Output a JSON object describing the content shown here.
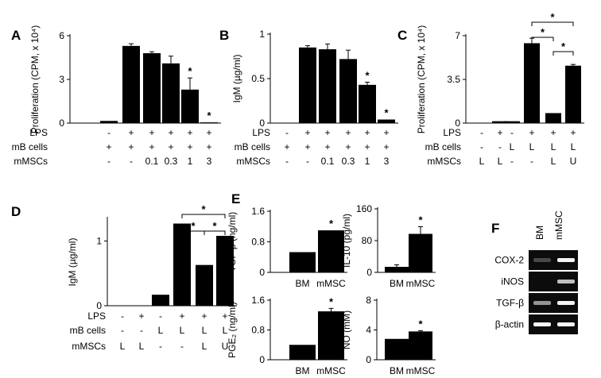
{
  "chart_data": [
    {
      "id": "A",
      "type": "bar",
      "panel_label": "A",
      "ylabel": "Proliferation (CPM, x 10⁴)",
      "ylim": [
        0,
        6
      ],
      "yticks": [
        "0",
        "3",
        "6"
      ],
      "values": [
        0.15,
        5.3,
        4.8,
        4.1,
        2.3,
        0.05
      ],
      "errors": [
        0,
        0.15,
        0.1,
        0.5,
        0.8,
        0
      ],
      "stars": [
        false,
        false,
        false,
        false,
        true,
        true
      ],
      "conditions": [
        {
          "name": "LPS",
          "values": [
            "-",
            "+",
            "+",
            "+",
            "+",
            "+"
          ]
        },
        {
          "name": "mB cells",
          "values": [
            "+",
            "+",
            "+",
            "+",
            "+",
            "+"
          ]
        },
        {
          "name": "mMSCs",
          "values": [
            "-",
            "-",
            "0.1",
            "0.3",
            "1",
            "3"
          ]
        }
      ]
    },
    {
      "id": "B",
      "type": "bar",
      "panel_label": "B",
      "ylabel": "IgM (µg/ml)",
      "ylim": [
        0,
        1
      ],
      "yticks": [
        "0",
        "0.5",
        "1"
      ],
      "values": [
        0.0,
        0.85,
        0.83,
        0.72,
        0.43,
        0.04
      ],
      "errors": [
        0,
        0.02,
        0.06,
        0.1,
        0.03,
        0
      ],
      "stars": [
        false,
        false,
        false,
        false,
        true,
        true
      ],
      "conditions": [
        {
          "name": "LPS",
          "values": [
            "-",
            "+",
            "+",
            "+",
            "+",
            "+"
          ]
        },
        {
          "name": "mB cells",
          "values": [
            "+",
            "+",
            "+",
            "+",
            "+",
            "+"
          ]
        },
        {
          "name": "mMSCs",
          "values": [
            "-",
            "-",
            "0.1",
            "0.3",
            "1",
            "3"
          ]
        }
      ]
    },
    {
      "id": "C",
      "type": "bar",
      "panel_label": "C",
      "ylabel": "Proliferation (CPM, x 10⁴)",
      "ylim": [
        0,
        7
      ],
      "yticks": [
        "0",
        "3.5",
        "7"
      ],
      "values": [
        0.0,
        0.15,
        0.15,
        6.4,
        0.8,
        4.6
      ],
      "errors": [
        0,
        0,
        0,
        0.4,
        0,
        0.1
      ],
      "stars": [
        false,
        false,
        false,
        false,
        false,
        false
      ],
      "brackets": [
        {
          "from": 3,
          "to": 5,
          "label": "*"
        },
        {
          "from": 3,
          "to": 4,
          "label": "*"
        },
        {
          "from": 4,
          "to": 5,
          "label": "*"
        }
      ],
      "conditions": [
        {
          "name": "LPS",
          "values": [
            "-",
            "+",
            "-",
            "+",
            "+",
            "+"
          ]
        },
        {
          "name": "mB cells",
          "values": [
            "-",
            "-",
            "L",
            "L",
            "L",
            "L"
          ]
        },
        {
          "name": "mMSCs",
          "values": [
            "L",
            "L",
            "-",
            "-",
            "L",
            "U"
          ]
        }
      ]
    },
    {
      "id": "D",
      "type": "bar",
      "panel_label": "D",
      "ylabel": "IgM (µg/ml)",
      "ylim": [
        0,
        1.35
      ],
      "yticks": [
        "0",
        "1"
      ],
      "values": [
        0.0,
        0.0,
        0.17,
        1.27,
        0.63,
        1.08
      ],
      "errors": [
        0,
        0,
        0,
        0,
        0,
        0
      ],
      "stars": [
        false,
        false,
        false,
        false,
        false,
        false
      ],
      "brackets": [
        {
          "from": 3,
          "to": 5,
          "label": "*"
        },
        {
          "from": 3,
          "to": 4,
          "label": "*"
        },
        {
          "from": 4,
          "to": 5,
          "label": "*"
        }
      ],
      "conditions": [
        {
          "name": "LPS",
          "values": [
            "-",
            "+",
            "-",
            "+",
            "+",
            "+"
          ]
        },
        {
          "name": "mB cells",
          "values": [
            "-",
            "-",
            "L",
            "L",
            "L",
            "L"
          ]
        },
        {
          "name": "mMSCs",
          "values": [
            "L",
            "L",
            "-",
            "-",
            "L",
            "U"
          ]
        }
      ]
    },
    {
      "id": "E1",
      "type": "bar",
      "panel_label": "E",
      "ylabel": "TGF-β (ng/ml)",
      "categories": [
        "BM",
        "mMSC"
      ],
      "ylim": [
        0,
        1.6
      ],
      "yticks": [
        "0",
        "0.8",
        "1.6"
      ],
      "values": [
        0.53,
        1.1
      ],
      "errors": [
        0,
        0
      ],
      "stars": [
        false,
        true
      ]
    },
    {
      "id": "E2",
      "type": "bar",
      "ylabel": "IL-10 (pg/ml)",
      "categories": [
        "BM",
        "mMSC"
      ],
      "ylim": [
        0,
        160
      ],
      "yticks": [
        "0",
        "80",
        "160"
      ],
      "values": [
        14,
        97
      ],
      "errors": [
        5,
        18
      ],
      "stars": [
        false,
        true
      ]
    },
    {
      "id": "E3",
      "type": "bar",
      "ylabel": "PGE₂ (ng/ml)",
      "categories": [
        "BM",
        "mMSC"
      ],
      "ylim": [
        0,
        1.6
      ],
      "yticks": [
        "0",
        "0.8",
        "1.6"
      ],
      "values": [
        0.4,
        1.3
      ],
      "errors": [
        0,
        0.08
      ],
      "stars": [
        false,
        true
      ]
    },
    {
      "id": "E4",
      "type": "bar",
      "ylabel": "NO (mM)",
      "categories": [
        "BM",
        "mMSC"
      ],
      "ylim": [
        0,
        8
      ],
      "yticks": [
        "0",
        "4",
        "8"
      ],
      "values": [
        2.8,
        3.8
      ],
      "errors": [
        0,
        0.1
      ],
      "stars": [
        false,
        true
      ]
    }
  ],
  "blot": {
    "panel_label": "F",
    "columns": [
      "BM",
      "mMSC"
    ],
    "rows": [
      "COX-2",
      "iNOS",
      "TGF-β",
      "β-actin"
    ],
    "intensity": [
      [
        0.15,
        0.95
      ],
      [
        0.0,
        0.7
      ],
      [
        0.5,
        0.95
      ],
      [
        0.95,
        0.95
      ]
    ]
  }
}
